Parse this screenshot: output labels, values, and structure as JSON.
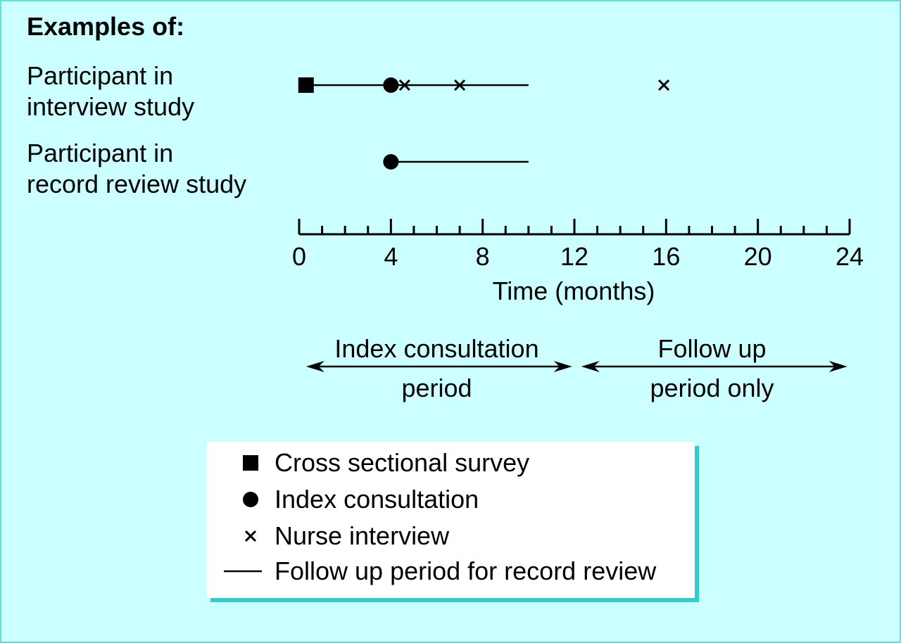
{
  "heading": "Examples of:",
  "rows": [
    {
      "label_lines": [
        "Participant in",
        "interview study"
      ],
      "follow_up": [
        4,
        10
      ],
      "survey": [
        0.3
      ],
      "consultation": [
        4
      ],
      "nurse_interviews": [
        4.6,
        7,
        15.9
      ]
    },
    {
      "label_lines": [
        "Participant in",
        "record review study"
      ],
      "follow_up": [
        4,
        10
      ],
      "survey": [],
      "consultation": [
        4
      ],
      "nurse_interviews": []
    }
  ],
  "axis": {
    "label": "Time (months)",
    "min": 0,
    "max": 24,
    "major_ticks": [
      0,
      4,
      8,
      12,
      16,
      20,
      24
    ],
    "tick_labels": [
      "0",
      "4",
      "8",
      "12",
      "16",
      "20",
      "24"
    ],
    "minor_step": 1
  },
  "periods": [
    {
      "lines": [
        "Index consultation",
        "period"
      ],
      "from": 0.3,
      "to": 11.9,
      "center": 6
    },
    {
      "lines": [
        "Follow up",
        "period only"
      ],
      "from": 12.3,
      "to": 23.9,
      "center": 18
    }
  ],
  "legend": [
    {
      "symbol": "square",
      "label": "Cross sectional survey"
    },
    {
      "symbol": "circle",
      "label": "Index consultation"
    },
    {
      "symbol": "cross",
      "label": "Nurse interview"
    },
    {
      "symbol": "line",
      "label": "Follow up period for record review"
    }
  ],
  "colors": {
    "background": "#ccffff",
    "legend_background": "#ffffff",
    "legend_shadow": "#33cccc",
    "ink": "#000000"
  }
}
